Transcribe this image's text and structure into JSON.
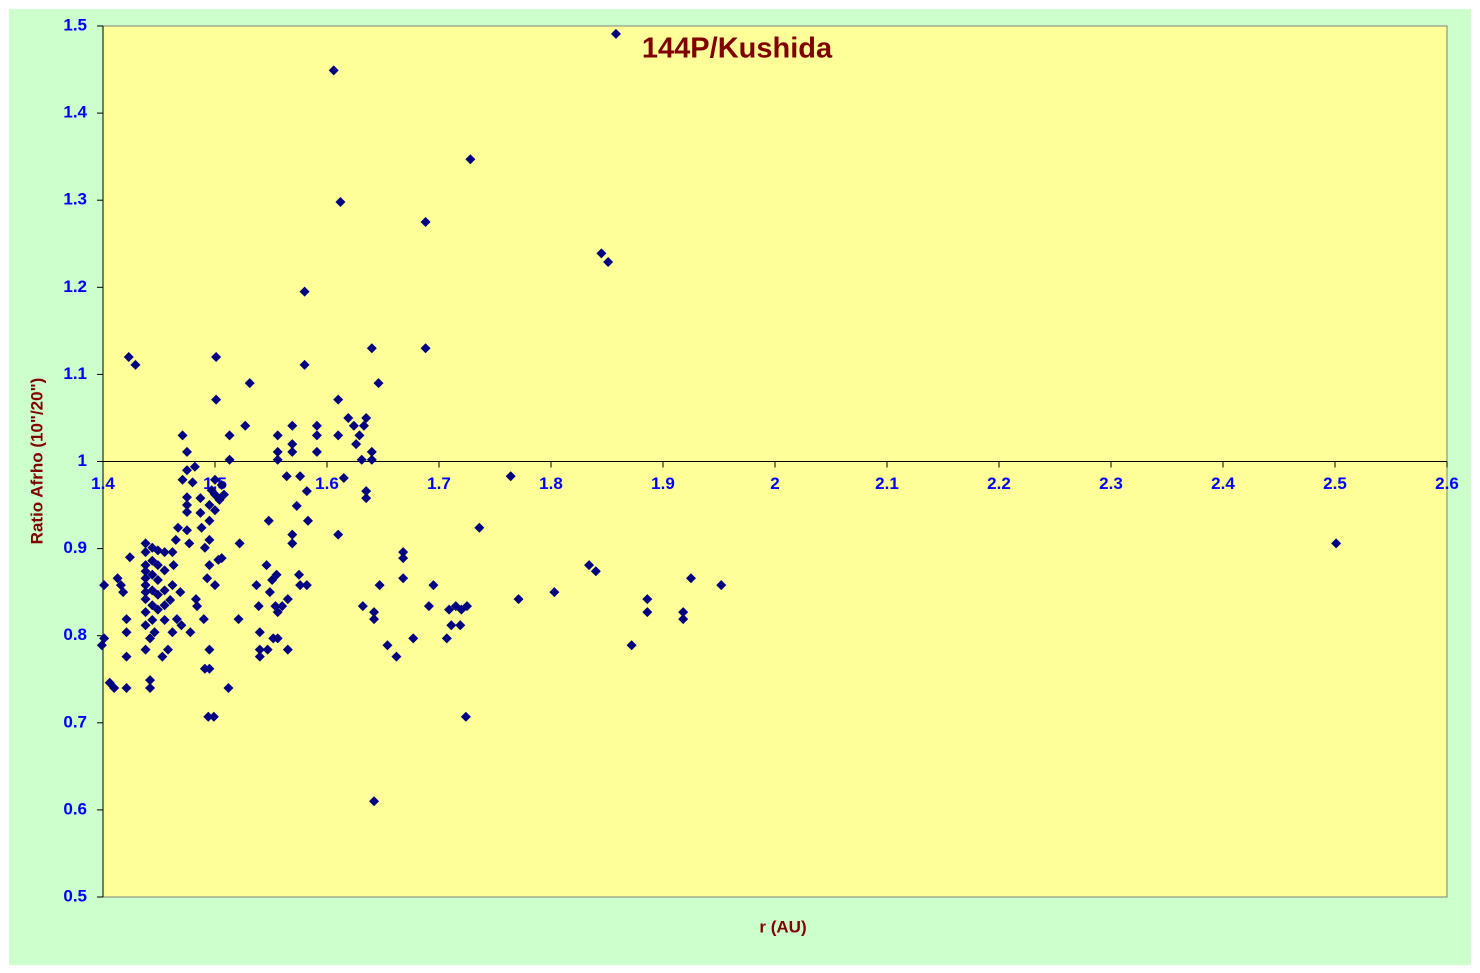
{
  "chart_data": {
    "type": "scatter",
    "title": "144P/Kushida",
    "x_label": "r (AU)",
    "y_label": "Ratio Afrho (10\"/20\")",
    "color": "#000080",
    "xaxis_at": 1,
    "xlim": [
      1.4,
      2.6
    ],
    "xticks": [
      1.4,
      1.5,
      1.6,
      1.7,
      1.8,
      1.9,
      2,
      2.1,
      2.2,
      2.3,
      2.4,
      2.5,
      2.6
    ],
    "ylim": [
      0.5,
      1.5
    ],
    "yticks": [
      0.5,
      0.6,
      0.7,
      0.8,
      0.9,
      1,
      1.1,
      1.2,
      1.3,
      1.4,
      1.5
    ],
    "x": [
      1.858,
      1.606,
      1.728,
      1.612,
      1.688,
      1.845,
      1.851,
      1.58,
      1.58,
      1.423,
      1.429,
      1.501,
      1.64,
      1.688,
      1.531,
      1.646,
      1.501,
      1.61,
      1.527,
      1.569,
      1.591,
      1.619,
      1.635,
      1.624,
      1.633,
      1.471,
      1.513,
      1.556,
      1.591,
      1.61,
      1.629,
      1.626,
      1.569,
      1.475,
      1.556,
      1.569,
      1.591,
      1.64,
      1.513,
      1.556,
      1.631,
      1.64,
      1.482,
      1.764,
      1.615,
      1.576,
      1.564,
      1.475,
      1.635,
      1.635,
      1.736,
      1.61,
      2.501,
      1.522,
      1.569,
      1.569,
      1.583,
      1.548,
      1.573,
      1.582,
      1.668,
      1.668,
      1.834,
      1.84,
      1.925,
      1.952,
      1.668,
      1.695,
      1.647,
      1.886,
      1.886,
      1.918,
      1.918,
      1.771,
      1.803,
      1.691,
      1.709,
      1.715,
      1.72,
      1.725,
      1.711,
      1.719,
      1.707,
      1.677,
      1.654,
      1.662,
      1.872,
      1.724,
      1.642,
      1.632,
      1.642,
      1.642,
      1.582,
      1.576,
      1.575,
      1.565,
      1.56,
      1.556,
      1.554,
      1.549,
      1.555,
      1.551,
      1.546,
      1.537,
      1.539,
      1.54,
      1.54,
      1.54,
      1.547,
      1.552,
      1.556,
      1.565,
      1.521,
      1.512,
      1.499,
      1.494,
      1.491,
      1.495,
      1.495,
      1.49,
      1.484,
      1.483,
      1.478,
      1.47,
      1.466,
      1.462,
      1.458,
      1.453,
      1.442,
      1.442,
      1.41,
      1.406,
      1.421,
      1.421,
      1.421,
      1.421,
      1.401,
      1.399,
      1.401,
      1.413,
      1.416,
      1.418,
      1.424,
      1.438,
      1.442,
      1.446,
      1.438,
      1.438,
      1.438,
      1.438,
      1.438,
      1.438,
      1.438,
      1.438,
      1.438,
      1.438,
      1.444,
      1.444,
      1.444,
      1.444,
      1.444,
      1.444,
      1.449,
      1.449,
      1.449,
      1.449,
      1.449,
      1.455,
      1.455,
      1.455,
      1.455,
      1.455,
      1.46,
      1.462,
      1.462,
      1.463,
      1.465,
      1.467,
      1.469,
      1.475,
      1.475,
      1.475,
      1.475,
      1.477,
      1.471,
      1.48,
      1.487,
      1.487,
      1.488,
      1.491,
      1.493,
      1.495,
      1.495,
      1.497,
      1.5,
      1.5,
      1.5,
      1.503,
      1.5,
      1.504,
      1.506,
      1.508,
      1.495,
      1.495,
      1.506
    ],
    "values": [
      1.491,
      1.449,
      1.347,
      1.298,
      1.275,
      1.239,
      1.229,
      1.195,
      1.111,
      1.12,
      1.111,
      1.12,
      1.13,
      1.13,
      1.09,
      1.09,
      1.071,
      1.071,
      1.041,
      1.041,
      1.041,
      1.05,
      1.05,
      1.041,
      1.041,
      1.03,
      1.03,
      1.03,
      1.03,
      1.03,
      1.03,
      1.02,
      1.02,
      1.011,
      1.011,
      1.011,
      1.011,
      1.011,
      1.002,
      1.002,
      1.002,
      1.002,
      0.994,
      0.983,
      0.981,
      0.983,
      0.983,
      0.99,
      0.966,
      0.958,
      0.924,
      0.916,
      0.906,
      0.906,
      0.916,
      0.906,
      0.932,
      0.932,
      0.949,
      0.966,
      0.896,
      0.889,
      0.881,
      0.874,
      0.866,
      0.858,
      0.866,
      0.858,
      0.858,
      0.842,
      0.827,
      0.827,
      0.819,
      0.842,
      0.85,
      0.834,
      0.83,
      0.834,
      0.83,
      0.834,
      0.812,
      0.812,
      0.797,
      0.797,
      0.789,
      0.776,
      0.789,
      0.707,
      0.61,
      0.834,
      0.827,
      0.819,
      0.858,
      0.858,
      0.87,
      0.842,
      0.834,
      0.827,
      0.834,
      0.85,
      0.87,
      0.864,
      0.881,
      0.858,
      0.834,
      0.804,
      0.784,
      0.776,
      0.784,
      0.797,
      0.797,
      0.784,
      0.819,
      0.74,
      0.707,
      0.707,
      0.762,
      0.762,
      0.784,
      0.819,
      0.834,
      0.842,
      0.804,
      0.812,
      0.819,
      0.804,
      0.784,
      0.776,
      0.749,
      0.74,
      0.74,
      0.746,
      0.74,
      0.776,
      0.804,
      0.819,
      0.797,
      0.789,
      0.858,
      0.866,
      0.858,
      0.85,
      0.89,
      0.784,
      0.797,
      0.804,
      0.812,
      0.827,
      0.842,
      0.85,
      0.858,
      0.866,
      0.874,
      0.881,
      0.896,
      0.906,
      0.901,
      0.886,
      0.87,
      0.852,
      0.835,
      0.818,
      0.898,
      0.881,
      0.864,
      0.847,
      0.83,
      0.896,
      0.875,
      0.852,
      0.835,
      0.818,
      0.841,
      0.858,
      0.896,
      0.881,
      0.91,
      0.924,
      0.85,
      0.921,
      0.942,
      0.95,
      0.959,
      0.906,
      0.979,
      0.976,
      0.958,
      0.941,
      0.924,
      0.901,
      0.866,
      0.932,
      0.95,
      0.967,
      0.944,
      0.962,
      0.979,
      0.887,
      0.858,
      0.956,
      0.973,
      0.962,
      0.91,
      0.881,
      0.889
    ]
  }
}
